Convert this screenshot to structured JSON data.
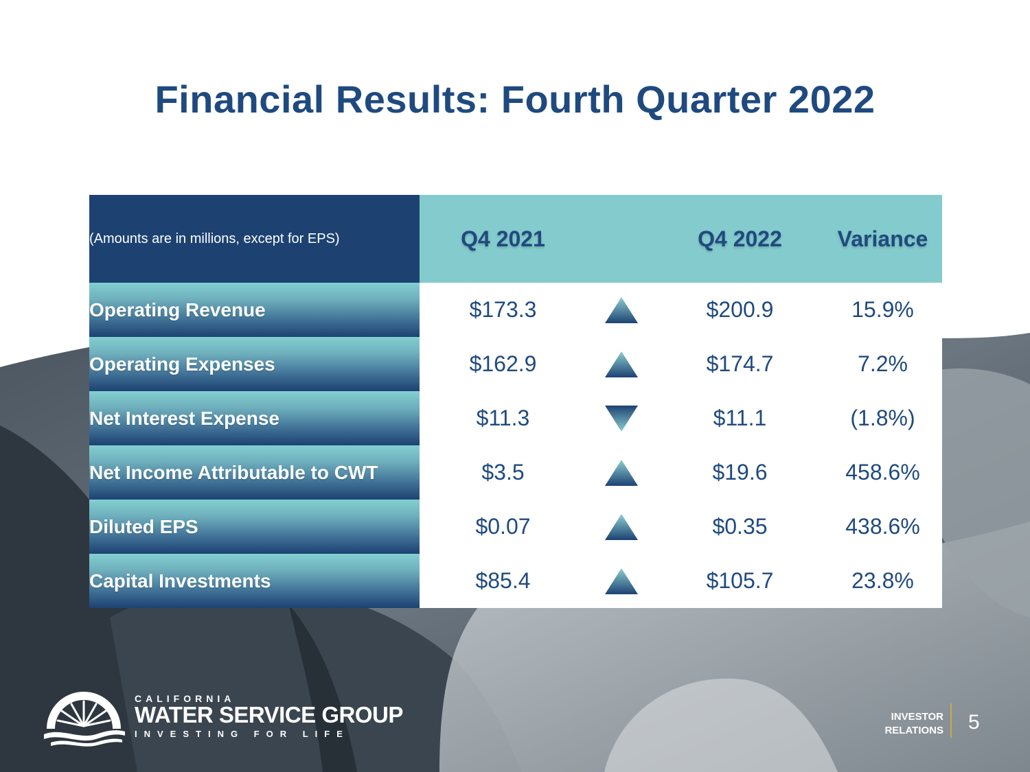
{
  "slide": {
    "title": "Financial Results: Fourth Quarter 2022",
    "page_number": "5"
  },
  "table": {
    "note": "(Amounts are in millions, except for EPS)",
    "columns": [
      "Q4 2021",
      "Q4 2022",
      "Variance"
    ],
    "rows": [
      {
        "label": "Operating Revenue",
        "q4_2021": "$173.3",
        "direction": "up",
        "q4_2022": "$200.9",
        "variance": "15.9%"
      },
      {
        "label": "Operating Expenses",
        "q4_2021": "$162.9",
        "direction": "up",
        "q4_2022": "$174.7",
        "variance": "7.2%"
      },
      {
        "label": "Net Interest Expense",
        "q4_2021": "$11.3",
        "direction": "down",
        "q4_2022": "$11.1",
        "variance": "(1.8%)"
      },
      {
        "label": "Net Income Attributable to CWT",
        "q4_2021": "$3.5",
        "direction": "up",
        "q4_2022": "$19.6",
        "variance": "458.6%"
      },
      {
        "label": "Diluted EPS",
        "q4_2021": "$0.07",
        "direction": "up",
        "q4_2022": "$0.35",
        "variance": "438.6%"
      },
      {
        "label": "Capital Investments",
        "q4_2021": "$85.4",
        "direction": "up",
        "q4_2022": "$105.7",
        "variance": "23.8%"
      }
    ]
  },
  "branding": {
    "company_top": "CALIFORNIA",
    "company_main": "WATER SERVICE GROUP",
    "tagline": "INVESTING FOR LIFE",
    "investor_line1": "INVESTOR",
    "investor_line2": "RELATIONS"
  },
  "colors": {
    "title": "#1f4a7f",
    "header_dark": "#1d4272",
    "header_teal": "#84cbcd",
    "accent_gold": "#c8a94a"
  }
}
